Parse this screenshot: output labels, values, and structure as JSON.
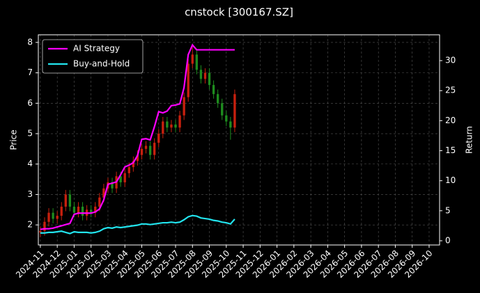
{
  "chart_data": {
    "type": "candlestick",
    "title": "cnstock [300167.SZ]",
    "ylabel": "Price",
    "y2label": "Return",
    "x": [
      0,
      0.25,
      0.5,
      0.75,
      1,
      1.25,
      1.5,
      1.75,
      2,
      2.25,
      2.5,
      2.75,
      3,
      3.25,
      3.5,
      3.75,
      4,
      4.25,
      4.5,
      4.75,
      5,
      5.25,
      5.5,
      5.75,
      6,
      6.25,
      6.5,
      6.75,
      7,
      7.25,
      7.5,
      7.75,
      8,
      8.25,
      8.5,
      8.75,
      9,
      9.25,
      9.5,
      9.75,
      10,
      10.25,
      10.5,
      10.75,
      11,
      11.25,
      11.5
    ],
    "open": [
      1.75,
      1.8,
      2.1,
      2.4,
      2.2,
      2.3,
      2.6,
      3.0,
      2.6,
      2.4,
      2.6,
      2.3,
      2.5,
      2.4,
      2.6,
      2.9,
      3.2,
      3.4,
      3.2,
      3.6,
      3.4,
      3.7,
      3.9,
      4.1,
      4.3,
      4.5,
      4.6,
      4.3,
      4.7,
      5.0,
      5.4,
      5.2,
      5.3,
      5.2,
      5.6,
      6.2,
      7.3,
      7.6,
      7.1,
      6.8,
      7.0,
      6.6,
      6.3,
      6.0,
      5.6,
      5.4,
      5.2
    ],
    "high": [
      1.95,
      2.25,
      2.55,
      2.55,
      2.45,
      2.75,
      3.15,
      3.15,
      2.75,
      2.75,
      2.75,
      2.65,
      2.65,
      2.75,
      3.05,
      3.35,
      3.55,
      3.55,
      3.75,
      3.75,
      3.85,
      4.05,
      4.25,
      4.45,
      4.65,
      4.75,
      4.75,
      4.85,
      5.15,
      5.55,
      5.55,
      5.45,
      5.45,
      5.75,
      6.35,
      7.45,
      7.85,
      7.75,
      7.25,
      7.15,
      7.15,
      6.75,
      6.45,
      6.15,
      5.75,
      5.55,
      6.45
    ],
    "low": [
      1.6,
      1.65,
      1.95,
      2.05,
      2.05,
      2.15,
      2.45,
      2.45,
      2.25,
      2.25,
      2.15,
      2.15,
      2.25,
      2.25,
      2.45,
      2.75,
      3.05,
      3.05,
      3.05,
      3.25,
      3.25,
      3.55,
      3.75,
      3.95,
      4.15,
      4.35,
      4.15,
      4.15,
      4.55,
      4.85,
      5.05,
      5.05,
      5.05,
      5.05,
      5.45,
      6.05,
      7.15,
      6.95,
      6.65,
      6.65,
      6.45,
      6.15,
      5.85,
      5.45,
      5.25,
      4.8,
      5.05
    ],
    "close": [
      1.8,
      2.1,
      2.4,
      2.2,
      2.3,
      2.6,
      3.0,
      2.6,
      2.4,
      2.6,
      2.3,
      2.5,
      2.4,
      2.6,
      2.9,
      3.2,
      3.4,
      3.2,
      3.6,
      3.4,
      3.7,
      3.9,
      4.1,
      4.3,
      4.5,
      4.6,
      4.3,
      4.7,
      5.0,
      5.4,
      5.2,
      5.3,
      5.2,
      5.6,
      6.2,
      7.3,
      7.6,
      7.1,
      6.8,
      7.0,
      6.6,
      6.3,
      6.0,
      5.6,
      5.4,
      5.2,
      6.3
    ],
    "up_color": "#c8200e",
    "down_color": "#1e8c1e",
    "series": [
      {
        "name": "AI Strategy",
        "color": "#ff00ff",
        "axis": "y2",
        "values": [
          1.9,
          2.0,
          2.0,
          2.1,
          2.3,
          2.5,
          2.7,
          2.9,
          4.4,
          4.6,
          4.6,
          4.6,
          4.6,
          4.8,
          5.3,
          6.8,
          9.4,
          9.6,
          9.8,
          11.0,
          12.3,
          12.6,
          13.0,
          14.2,
          16.9,
          17.0,
          16.8,
          19.0,
          21.5,
          21.3,
          21.6,
          22.5,
          22.6,
          22.8,
          25.5,
          31.0,
          32.6,
          31.8,
          31.8,
          31.8,
          31.8,
          31.8,
          31.8,
          31.8,
          31.8,
          31.8,
          31.8
        ]
      },
      {
        "name": "Buy-and-Hold",
        "color": "#22e4ee",
        "axis": "y2",
        "values": [
          1.3,
          1.3,
          1.4,
          1.4,
          1.5,
          1.6,
          1.4,
          1.2,
          1.5,
          1.4,
          1.4,
          1.4,
          1.3,
          1.4,
          1.6,
          2.0,
          2.2,
          2.1,
          2.3,
          2.2,
          2.3,
          2.4,
          2.5,
          2.6,
          2.8,
          2.8,
          2.7,
          2.8,
          2.9,
          3.0,
          3.0,
          3.1,
          3.0,
          3.1,
          3.5,
          4.0,
          4.2,
          4.1,
          3.8,
          3.7,
          3.6,
          3.4,
          3.3,
          3.1,
          3.0,
          2.8,
          3.6
        ]
      }
    ],
    "xlim": [
      -0.12,
      23.62
    ],
    "xticks": [
      {
        "value": 0,
        "label": "2024-11"
      },
      {
        "value": 1,
        "label": "2024-12"
      },
      {
        "value": 2,
        "label": "2025-01"
      },
      {
        "value": 3,
        "label": "2025-02"
      },
      {
        "value": 4,
        "label": "2025-03"
      },
      {
        "value": 5,
        "label": "2025-04"
      },
      {
        "value": 6,
        "label": "2025-05"
      },
      {
        "value": 7,
        "label": "2025-06"
      },
      {
        "value": 8,
        "label": "2025-07"
      },
      {
        "value": 9,
        "label": "2025-08"
      },
      {
        "value": 10,
        "label": "2025-09"
      },
      {
        "value": 11,
        "label": "2025-10"
      },
      {
        "value": 12,
        "label": "2025-11"
      },
      {
        "value": 13,
        "label": "2025-12"
      },
      {
        "value": 14,
        "label": "2026-01"
      },
      {
        "value": 15,
        "label": "2026-02"
      },
      {
        "value": 16,
        "label": "2026-03"
      },
      {
        "value": 17,
        "label": "2026-04"
      },
      {
        "value": 18,
        "label": "2026-05"
      },
      {
        "value": 19,
        "label": "2026-06"
      },
      {
        "value": 20,
        "label": "2026-07"
      },
      {
        "value": 21,
        "label": "2026-08"
      },
      {
        "value": 22,
        "label": "2026-09"
      },
      {
        "value": 23,
        "label": "2026-10"
      }
    ],
    "ylim": [
      1.34,
      8.25
    ],
    "yticks": [
      2,
      3,
      4,
      5,
      6,
      7,
      8
    ],
    "y2lim": [
      -0.7,
      34.3
    ],
    "y2ticks": [
      0,
      5,
      10,
      15,
      20,
      25,
      30
    ],
    "grid": true,
    "legend": "upper left"
  }
}
